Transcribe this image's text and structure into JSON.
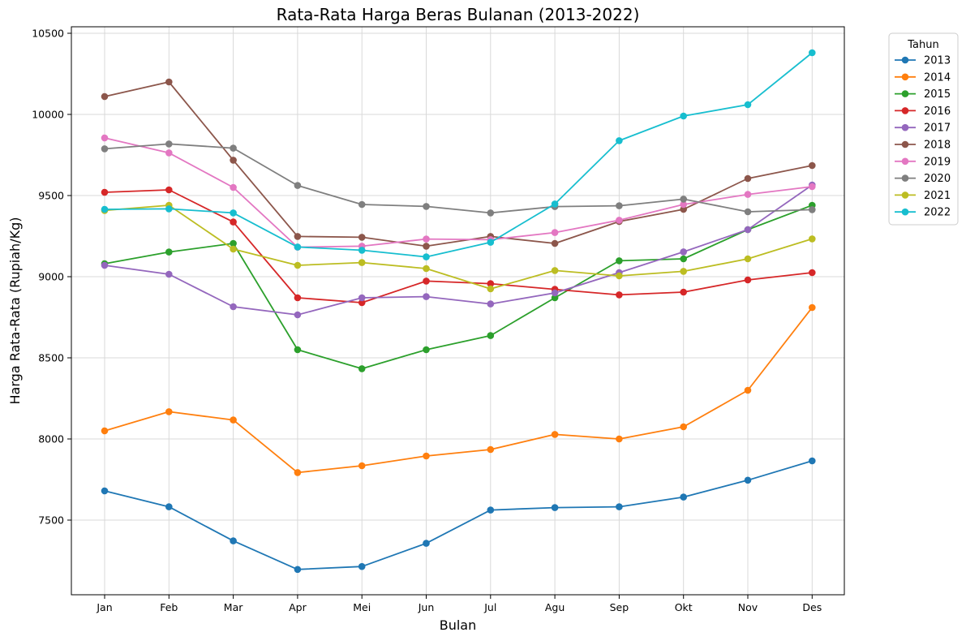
{
  "chart_data": {
    "type": "line",
    "title": "Rata-Rata Harga Beras Bulanan (2013-2022)",
    "xlabel": "Bulan",
    "ylabel": "Harga Rata-Rata (Rupiah/Kg)",
    "categories": [
      "Jan",
      "Feb",
      "Mar",
      "Apr",
      "Mei",
      "Jun",
      "Jul",
      "Agu",
      "Sep",
      "Okt",
      "Nov",
      "Des"
    ],
    "ylim": [
      7040,
      10540
    ],
    "yticks": [
      7500,
      8000,
      8500,
      9000,
      9500,
      10000,
      10500
    ],
    "grid": true,
    "legend": {
      "title": "Tahun",
      "placement": "outside-top-right"
    },
    "series": [
      {
        "name": "2013",
        "color": "#1f77b4",
        "values": [
          7680,
          7582,
          7372,
          7196,
          7214,
          7357,
          7562,
          7577,
          7582,
          7642,
          7746,
          7865
        ]
      },
      {
        "name": "2014",
        "color": "#ff7f0e",
        "values": [
          8050,
          8168,
          8117,
          7793,
          7835,
          7895,
          7935,
          8028,
          8000,
          8075,
          8300,
          8810
        ]
      },
      {
        "name": "2015",
        "color": "#2ca02c",
        "values": [
          9080,
          9152,
          9205,
          8550,
          8433,
          8550,
          8637,
          8870,
          9098,
          9110,
          9290,
          9440
        ]
      },
      {
        "name": "2016",
        "color": "#d62728",
        "values": [
          9520,
          9535,
          9337,
          8870,
          8840,
          8973,
          8957,
          8922,
          8888,
          8905,
          8980,
          9025
        ]
      },
      {
        "name": "2017",
        "color": "#9467bd",
        "values": [
          9070,
          9015,
          8815,
          8765,
          8870,
          8877,
          8832,
          8900,
          9025,
          9153,
          9290,
          9565
        ]
      },
      {
        "name": "2018",
        "color": "#8c564b",
        "values": [
          10110,
          10200,
          9718,
          9248,
          9243,
          9188,
          9248,
          9205,
          9340,
          9415,
          9605,
          9685
        ]
      },
      {
        "name": "2019",
        "color": "#e377c2",
        "values": [
          9855,
          9763,
          9550,
          9182,
          9188,
          9232,
          9228,
          9272,
          9348,
          9445,
          9507,
          9555
        ]
      },
      {
        "name": "2020",
        "color": "#7f7f7f",
        "values": [
          9788,
          9818,
          9792,
          9562,
          9445,
          9433,
          9393,
          9432,
          9437,
          9478,
          9400,
          9413
        ]
      },
      {
        "name": "2021",
        "color": "#bcbd22",
        "values": [
          9408,
          9440,
          9170,
          9070,
          9087,
          9050,
          8925,
          9038,
          9005,
          9033,
          9110,
          9233
        ]
      },
      {
        "name": "2022",
        "color": "#17becf",
        "values": [
          9415,
          9418,
          9393,
          9183,
          9163,
          9122,
          9212,
          9448,
          9838,
          9990,
          10060,
          10380
        ]
      }
    ]
  }
}
